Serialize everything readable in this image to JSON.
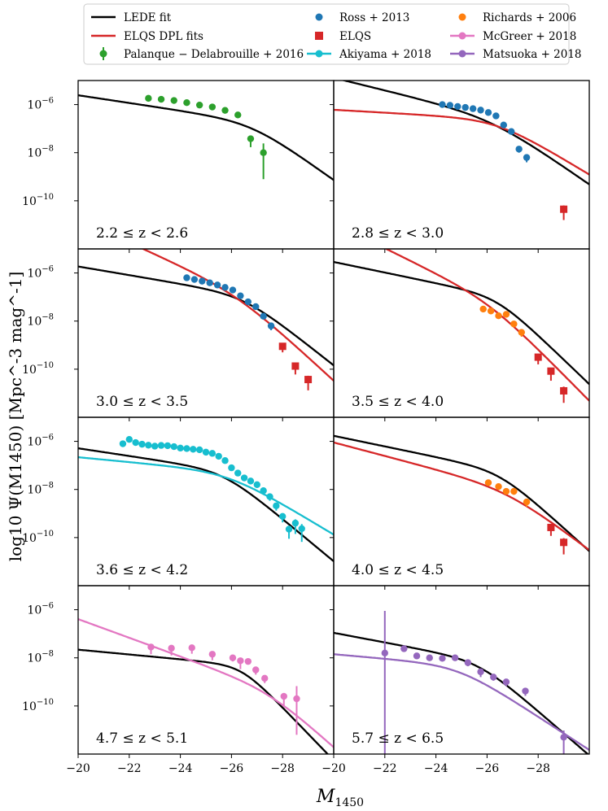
{
  "chart_data": {
    "type": "scatter",
    "title": "",
    "xlabel": "M",
    "xlabel_sub": "1450",
    "ylabel": "log10 Ψ(M1450) [Mpc^-3 mag^-1]",
    "xlim": [
      -20,
      -30
    ],
    "ylim_log10": [
      -12,
      -5
    ],
    "x_ticks": [
      -20,
      -22,
      -24,
      -26,
      -28
    ],
    "x_tick_labels": [
      "−20",
      "−22",
      "−24",
      "−26",
      "−28"
    ],
    "y_ticks_log10": [
      -10,
      -8,
      -6
    ],
    "y_tick_labels": [
      "10",
      "10",
      "10"
    ],
    "y_tick_exponents": [
      "−10",
      "−8",
      "−6"
    ],
    "legend": [
      {
        "label": "LEDE fit",
        "color": "#000000",
        "style": "line"
      },
      {
        "label": "ELQS DPL fits",
        "color": "#d62728",
        "style": "line"
      },
      {
        "label": "Palanque − Delabrouille + 2016",
        "color": "#2ca02c",
        "style": "errorbar"
      },
      {
        "label": "Ross + 2013",
        "color": "#1f77b4",
        "style": "dot"
      },
      {
        "label": "ELQS",
        "color": "#d62728",
        "style": "square"
      },
      {
        "label": "Akiyama + 2018",
        "color": "#17becf",
        "style": "line-dot"
      },
      {
        "label": "Richards + 2006",
        "color": "#ff7f0e",
        "style": "dot"
      },
      {
        "label": "McGreer + 2018",
        "color": "#e377c2",
        "style": "line-dot"
      },
      {
        "label": "Matsuoka + 2018",
        "color": "#9467bd",
        "style": "line-dot"
      }
    ],
    "panels": [
      {
        "label": "2.2 ≤ z < 2.6",
        "lines": [
          {
            "name": "LEDE fit",
            "color": "#000000",
            "knee": -26.8,
            "phi_knee": -6.7,
            "alpha": -1.4,
            "beta": -2.9
          }
        ],
        "series": [
          {
            "name": "Palanque − Delabrouille + 2016",
            "color": "#2ca02c",
            "marker": "circle",
            "x": [
              -22.75,
              -23.25,
              -23.75,
              -24.25,
              -24.75,
              -25.25,
              -25.75,
              -26.25,
              -26.75,
              -27.25
            ],
            "y": [
              -5.74,
              -5.78,
              -5.83,
              -5.92,
              -6.02,
              -6.1,
              -6.24,
              -6.43,
              -7.42,
              -8.0
            ],
            "err": [
              0.06,
              0.06,
              0.06,
              0.06,
              0.06,
              0.07,
              0.07,
              0.08,
              0.35,
              1.1
            ]
          }
        ]
      },
      {
        "label": "2.8 ≤ z < 3.0",
        "lines": [
          {
            "name": "LEDE fit",
            "color": "#000000",
            "knee": -26.2,
            "phi_knee": -6.5,
            "alpha": -1.65,
            "beta": -2.85
          },
          {
            "name": "ELQS DPL fits",
            "color": "#d62728",
            "knee": -26.4,
            "phi_knee": -6.6,
            "alpha": -1.15,
            "beta": -2.6
          }
        ],
        "series": [
          {
            "name": "Ross + 2013",
            "color": "#1f77b4",
            "marker": "circle",
            "x": [
              -24.25,
              -24.55,
              -24.85,
              -25.15,
              -25.45,
              -25.75,
              -26.05,
              -26.35,
              -26.65,
              -26.95,
              -27.25,
              -27.55
            ],
            "y": [
              -6.0,
              -6.03,
              -6.08,
              -6.12,
              -6.17,
              -6.23,
              -6.33,
              -6.47,
              -6.85,
              -7.12,
              -7.85,
              -8.2
            ],
            "err": [
              0.05,
              0.05,
              0.05,
              0.05,
              0.05,
              0.05,
              0.06,
              0.06,
              0.08,
              0.1,
              0.15,
              0.2
            ]
          },
          {
            "name": "ELQS",
            "color": "#d62728",
            "marker": "square",
            "x": [
              -29.0
            ],
            "y": [
              -10.35
            ],
            "err": [
              0.45
            ]
          }
        ]
      },
      {
        "label": "3.0 ≤ z < 3.5",
        "lines": [
          {
            "name": "LEDE fit",
            "color": "#000000",
            "knee": -26.5,
            "phi_knee": -6.9,
            "alpha": -1.45,
            "beta": -3.1
          },
          {
            "name": "ELQS DPL fits",
            "color": "#d62728",
            "knee": -26.2,
            "phi_knee": -6.75,
            "alpha": -2.2,
            "beta": -3.45
          }
        ],
        "series": [
          {
            "name": "Ross + 2013",
            "color": "#1f77b4",
            "marker": "circle",
            "x": [
              -24.25,
              -24.55,
              -24.85,
              -25.15,
              -25.45,
              -25.75,
              -26.05,
              -26.35,
              -26.65,
              -26.95,
              -27.25,
              -27.55
            ],
            "y": [
              -6.2,
              -6.27,
              -6.34,
              -6.41,
              -6.5,
              -6.6,
              -6.71,
              -6.95,
              -7.2,
              -7.4,
              -7.8,
              -8.2
            ],
            "err": [
              0.05,
              0.05,
              0.05,
              0.05,
              0.05,
              0.06,
              0.06,
              0.07,
              0.08,
              0.1,
              0.12,
              0.18
            ]
          },
          {
            "name": "ELQS",
            "color": "#d62728",
            "marker": "square",
            "x": [
              -28.0,
              -28.5,
              -29.0
            ],
            "y": [
              -9.05,
              -9.87,
              -10.43
            ],
            "err": [
              0.25,
              0.35,
              0.45
            ]
          }
        ]
      },
      {
        "label": "3.5 ≤ z < 4.0",
        "lines": [
          {
            "name": "LEDE fit",
            "color": "#000000",
            "knee": -26.4,
            "phi_knee": -6.95,
            "alpha": -1.55,
            "beta": -3.55
          },
          {
            "name": "ELQS DPL fits",
            "color": "#d62728",
            "knee": -26.1,
            "phi_knee": -7.1,
            "alpha": -2.3,
            "beta": -3.7
          }
        ],
        "series": [
          {
            "name": "Richards + 2006",
            "color": "#ff7f0e",
            "marker": "circle",
            "x": [
              -25.85,
              -26.15,
              -26.45,
              -26.75,
              -27.05,
              -27.35
            ],
            "y": [
              -7.5,
              -7.58,
              -7.78,
              -7.72,
              -8.12,
              -8.47
            ],
            "err": [
              0.08,
              0.08,
              0.1,
              0.1,
              0.14,
              0.18
            ]
          },
          {
            "name": "ELQS",
            "color": "#d62728",
            "marker": "square",
            "x": [
              -28.0,
              -28.5,
              -29.0
            ],
            "y": [
              -9.5,
              -10.08,
              -10.9
            ],
            "err": [
              0.3,
              0.4,
              0.5
            ]
          }
        ]
      },
      {
        "label": "3.6 ≤ z < 4.2",
        "lines": [
          {
            "name": "LEDE fit",
            "color": "#000000",
            "knee": -25.7,
            "phi_knee": -7.2,
            "alpha": -1.4,
            "beta": -3.2
          },
          {
            "name": "Akiyama + 2018",
            "color": "#17becf",
            "knee": -25.9,
            "phi_knee": -7.25,
            "alpha": -1.25,
            "beta": -2.6
          }
        ],
        "series": [
          {
            "name": "Akiyama + 2018",
            "color": "#17becf",
            "marker": "circle",
            "x": [
              -21.75,
              -22.0,
              -22.25,
              -22.5,
              -22.75,
              -23.0,
              -23.25,
              -23.5,
              -23.75,
              -24.0,
              -24.25,
              -24.5,
              -24.75,
              -25.0,
              -25.25,
              -25.5,
              -25.75,
              -26.0,
              -26.25,
              -26.5,
              -26.75,
              -27.0,
              -27.25,
              -27.5,
              -27.75,
              -28.0,
              -28.25,
              -28.5,
              -28.75
            ],
            "y": [
              -6.1,
              -5.92,
              -6.05,
              -6.12,
              -6.16,
              -6.2,
              -6.17,
              -6.18,
              -6.22,
              -6.28,
              -6.3,
              -6.33,
              -6.35,
              -6.45,
              -6.5,
              -6.62,
              -6.8,
              -7.1,
              -7.32,
              -7.52,
              -7.65,
              -7.8,
              -8.05,
              -8.3,
              -8.68,
              -9.12,
              -9.65,
              -9.4,
              -9.63
            ],
            "err": [
              0.04,
              0.04,
              0.04,
              0.04,
              0.04,
              0.04,
              0.04,
              0.04,
              0.04,
              0.04,
              0.04,
              0.05,
              0.05,
              0.05,
              0.06,
              0.06,
              0.07,
              0.08,
              0.09,
              0.1,
              0.12,
              0.13,
              0.15,
              0.17,
              0.2,
              0.25,
              0.4,
              0.45,
              0.55
            ]
          }
        ]
      },
      {
        "label": "4.0 ≤ z < 4.5",
        "lines": [
          {
            "name": "LEDE fit",
            "color": "#000000",
            "knee": -26.5,
            "phi_knee": -7.2,
            "alpha": -1.55,
            "beta": -3.4
          },
          {
            "name": "ELQS DPL fits",
            "color": "#d62728",
            "knee": -26.8,
            "phi_knee": -7.95,
            "alpha": -1.7,
            "beta": -3.0
          }
        ],
        "series": [
          {
            "name": "Richards + 2006",
            "color": "#ff7f0e",
            "marker": "circle",
            "x": [
              -26.05,
              -26.45,
              -26.75,
              -27.05,
              -27.55
            ],
            "y": [
              -7.72,
              -7.88,
              -8.08,
              -8.08,
              -8.52
            ],
            "err": [
              0.1,
              0.12,
              0.14,
              0.14,
              0.2
            ]
          },
          {
            "name": "ELQS",
            "color": "#d62728",
            "marker": "square",
            "x": [
              -28.5,
              -29.0
            ],
            "y": [
              -9.58,
              -10.2
            ],
            "err": [
              0.35,
              0.5
            ]
          }
        ]
      },
      {
        "label": "4.7 ≤ z < 5.1",
        "lines": [
          {
            "name": "LEDE fit",
            "color": "#000000",
            "knee": -26.4,
            "phi_knee": -8.3,
            "alpha": -1.25,
            "beta": -3.75
          },
          {
            "name": "McGreer + 2018",
            "color": "#e377c2",
            "knee": -27.5,
            "phi_knee": -9.3,
            "alpha": -1.97,
            "beta": -3.4
          }
        ],
        "series": [
          {
            "name": "McGreer + 2018",
            "color": "#e377c2",
            "marker": "circle",
            "x": [
              -22.85,
              -23.65,
              -24.45,
              -25.25,
              -26.05,
              -26.35,
              -26.65,
              -26.95,
              -27.3,
              -28.05,
              -28.55
            ],
            "y": [
              -7.55,
              -7.6,
              -7.58,
              -7.85,
              -8.0,
              -8.12,
              -8.15,
              -8.5,
              -8.85,
              -9.6,
              -9.7
            ],
            "err": [
              0.3,
              0.3,
              0.25,
              0.25,
              0.15,
              0.35,
              0.12,
              0.2,
              0.2,
              0.4,
              1.5
            ]
          }
        ]
      },
      {
        "label": "5.7 ≤ z < 6.5",
        "lines": [
          {
            "name": "LEDE fit",
            "color": "#000000",
            "knee": -25.7,
            "phi_knee": -8.1,
            "alpha": -1.5,
            "beta": -3.3
          },
          {
            "name": "Matsuoka + 2018",
            "color": "#9467bd",
            "knee": -24.9,
            "phi_knee": -8.3,
            "alpha": -1.23,
            "beta": -2.73
          }
        ],
        "series": [
          {
            "name": "Matsuoka + 2018",
            "color": "#9467bd",
            "marker": "circle",
            "x": [
              -22.0,
              -22.75,
              -23.25,
              -23.75,
              -24.25,
              -24.75,
              -25.25,
              -25.75,
              -26.25,
              -26.75,
              -27.5,
              -29.0
            ],
            "y": [
              -7.8,
              -7.62,
              -7.92,
              -8.0,
              -8.02,
              -8.0,
              -8.2,
              -8.58,
              -8.8,
              -9.0,
              -9.38,
              -11.3
            ],
            "err": [
              5.0,
              0.12,
              0.12,
              0.12,
              0.12,
              0.12,
              0.15,
              0.22,
              0.15,
              0.18,
              0.2,
              0.8
            ]
          }
        ]
      }
    ]
  }
}
